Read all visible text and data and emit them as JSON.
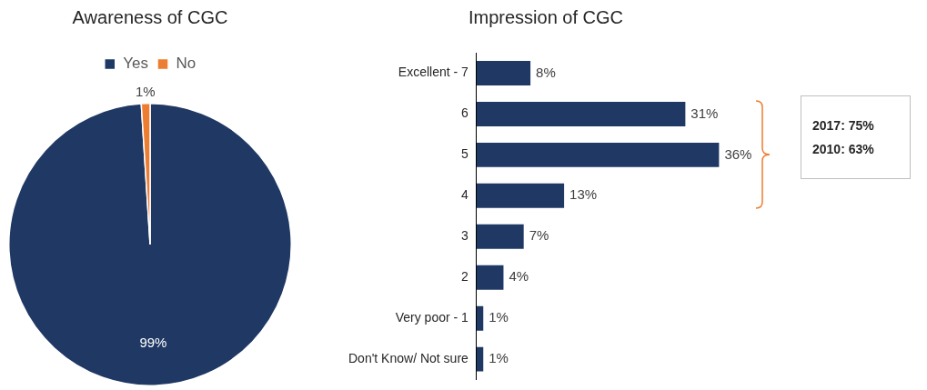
{
  "chart_data": [
    {
      "type": "pie",
      "title": "Awareness of CGC",
      "categories": [
        "Yes",
        "No"
      ],
      "values": [
        99,
        1
      ],
      "colors": [
        "#1f3864",
        "#ed7d31"
      ],
      "legend": "top",
      "value_labels": [
        "99%",
        "1%"
      ]
    },
    {
      "type": "bar",
      "orientation": "horizontal",
      "title": "Impression of CGC",
      "categories": [
        "Excellent - 7",
        "6",
        "5",
        "4",
        "3",
        "2",
        "Very poor - 1",
        "Don't Know/ Not sure"
      ],
      "values": [
        8,
        31,
        36,
        13,
        7,
        4,
        1,
        1
      ],
      "color": "#1f3864",
      "value_labels": [
        "8%",
        "31%",
        "36%",
        "13%",
        "7%",
        "4%",
        "1%",
        "1%"
      ],
      "tick_labels": "y",
      "grid": false,
      "annotations": [
        "2017: 75%",
        "2010: 63%"
      ]
    }
  ]
}
